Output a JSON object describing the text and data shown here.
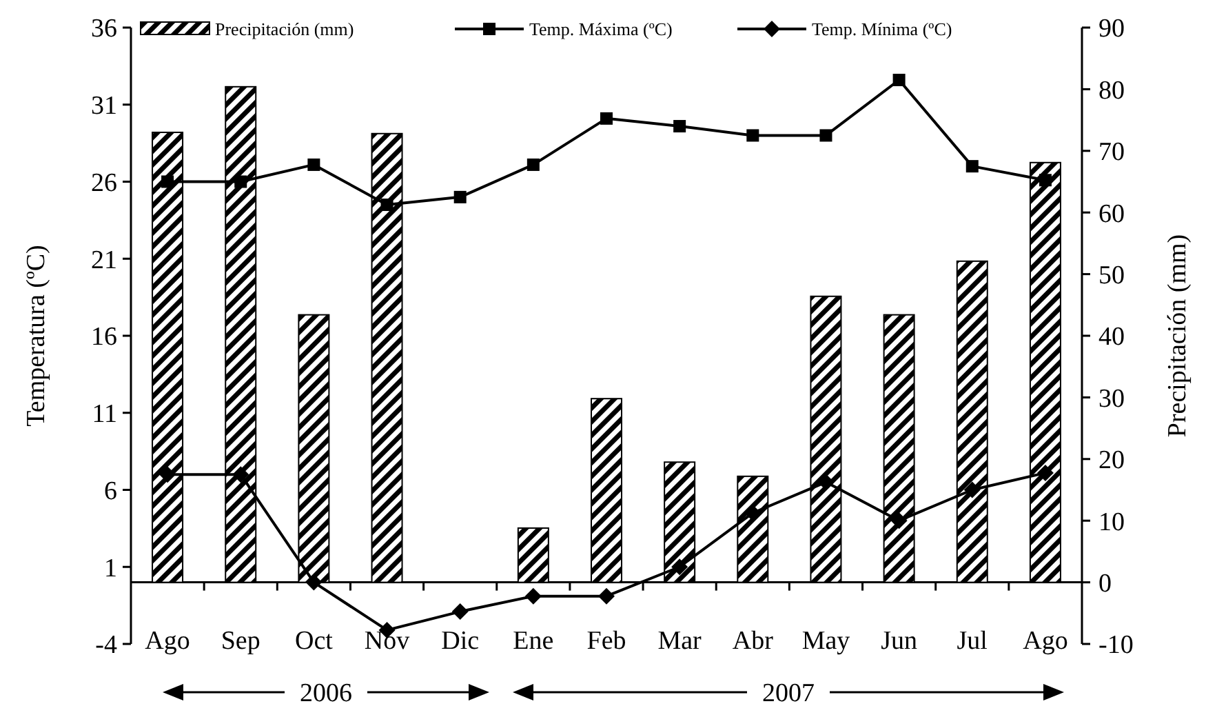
{
  "chart_data": {
    "type": "bar",
    "ylabel": "Temperatura (ºC)",
    "y2label": "Precipitación (mm)",
    "categories": [
      "Ago",
      "Sep",
      "Oct",
      "Nov",
      "Dic",
      "Ene",
      "Feb",
      "Mar",
      "Abr",
      "May",
      "Jun",
      "Jul",
      "Ago"
    ],
    "series": [
      {
        "name": "Precipitación (mm)",
        "axis": "y2",
        "color": "#000000",
        "values": [
          73,
          80.4,
          43.4,
          72.8,
          0,
          8.8,
          29.8,
          19.5,
          17.2,
          46.4,
          43.4,
          52.1,
          68.1
        ]
      },
      {
        "name": "Temp. Máxima (ºC)",
        "type": "line",
        "marker": "square",
        "color": "#000000",
        "values": [
          26,
          26,
          27.1,
          24.5,
          25,
          27.1,
          30.1,
          29.6,
          29,
          29,
          32.6,
          27,
          26.1
        ]
      },
      {
        "name": "Temp. Mínima (ºC)",
        "type": "line",
        "marker": "diamond",
        "color": "#000000",
        "values": [
          7,
          7,
          0,
          -3.1,
          -1.9,
          -0.9,
          -0.9,
          1,
          4.5,
          6.5,
          4,
          6,
          7.1
        ]
      }
    ],
    "ylim": [
      -4,
      36
    ],
    "yticks": [
      -4,
      1,
      6,
      11,
      16,
      21,
      26,
      31,
      36
    ],
    "y2lim": [
      -10,
      90
    ],
    "y2ticks": [
      -10,
      0,
      10,
      20,
      30,
      40,
      50,
      60,
      70,
      80,
      90
    ],
    "legend": "top",
    "grid": false,
    "annotations": [
      "2006",
      "2007"
    ]
  }
}
